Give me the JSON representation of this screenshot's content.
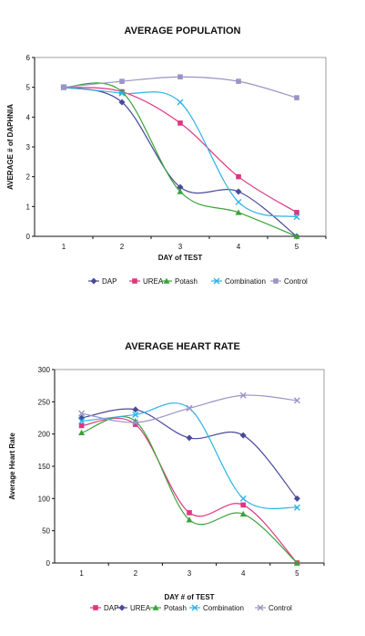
{
  "chart_data": [
    {
      "type": "line",
      "title": "AVERAGE POPULATION",
      "xlabel": "DAY of TEST",
      "ylabel": "AVERAGE # of DAPHNIA",
      "categories": [
        "1",
        "2",
        "3",
        "4",
        "5"
      ],
      "ylim": [
        0,
        6
      ],
      "yticks": [
        0,
        1,
        2,
        3,
        4,
        5,
        6
      ],
      "grid": false,
      "legend": "bottom",
      "series": [
        {
          "name": "DAP",
          "color": "#4a4a9c",
          "marker": "diamond",
          "values": [
            5.0,
            4.5,
            1.65,
            1.5,
            0.0
          ]
        },
        {
          "name": "UREA",
          "color": "#e0357f",
          "marker": "square",
          "values": [
            5.0,
            4.85,
            3.8,
            2.0,
            0.8
          ]
        },
        {
          "name": "Potash",
          "color": "#3aa33a",
          "marker": "triangle",
          "values": [
            5.0,
            4.85,
            1.5,
            0.8,
            0.0
          ]
        },
        {
          "name": "Combination",
          "color": "#2eb3e6",
          "marker": "x",
          "values": [
            5.0,
            4.8,
            4.5,
            1.15,
            0.65
          ]
        },
        {
          "name": "Control",
          "color": "#9a94c6",
          "marker": "square",
          "values": [
            5.0,
            5.2,
            5.35,
            5.2,
            4.65
          ]
        }
      ]
    },
    {
      "type": "line",
      "title": "AVERAGE HEART RATE",
      "xlabel": "DAY # of TEST",
      "ylabel": "Average Heart Rate",
      "categories": [
        "1",
        "2",
        "3",
        "4",
        "5"
      ],
      "ylim": [
        0,
        300
      ],
      "yticks": [
        0,
        50,
        100,
        150,
        200,
        250,
        300
      ],
      "grid": false,
      "legend": "bottom",
      "series": [
        {
          "name": "DAP",
          "color": "#e0357f",
          "marker": "square",
          "values": [
            213,
            215,
            78,
            90,
            0
          ]
        },
        {
          "name": "UREA",
          "color": "#4a4a9c",
          "marker": "diamond",
          "values": [
            225,
            238,
            194,
            198,
            100
          ]
        },
        {
          "name": "Potash",
          "color": "#3aa33a",
          "marker": "triangle",
          "values": [
            202,
            220,
            67,
            76,
            0
          ]
        },
        {
          "name": "Combination",
          "color": "#2eb3e6",
          "marker": "x",
          "values": [
            220,
            230,
            240,
            100,
            86
          ]
        },
        {
          "name": "Control",
          "color": "#9a94c6",
          "marker": "x",
          "values": [
            232,
            218,
            240,
            260,
            252
          ]
        }
      ]
    }
  ]
}
